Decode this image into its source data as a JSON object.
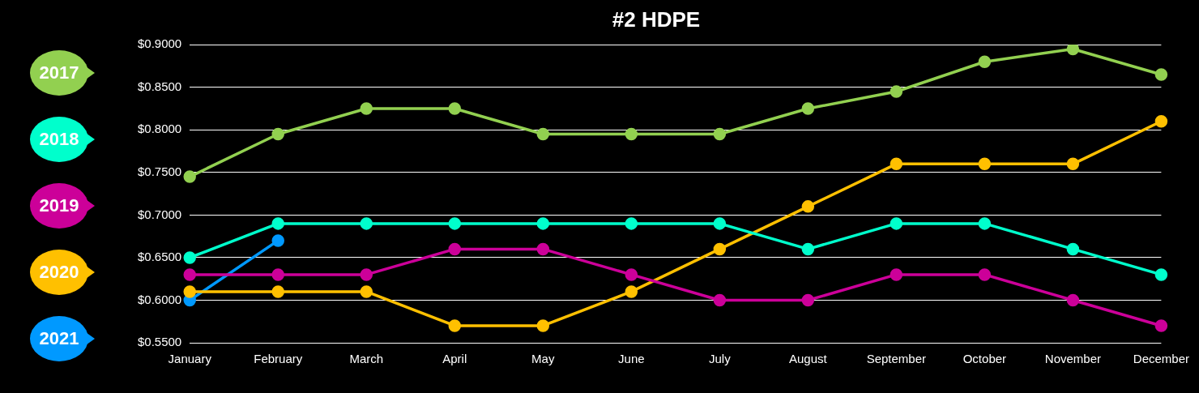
{
  "chart_data": {
    "type": "line",
    "title": "#2 HDPE",
    "categories": [
      "January",
      "February",
      "March",
      "April",
      "May",
      "June",
      "July",
      "August",
      "September",
      "October",
      "November",
      "December"
    ],
    "series": [
      {
        "name": "2017",
        "color": "#92d050",
        "values": [
          0.745,
          0.795,
          0.825,
          0.825,
          0.795,
          0.795,
          0.795,
          0.825,
          0.845,
          0.88,
          0.895,
          0.865
        ]
      },
      {
        "name": "2018",
        "color": "#00ffcc",
        "values": [
          0.65,
          0.69,
          0.69,
          0.69,
          0.69,
          0.69,
          0.69,
          0.66,
          0.69,
          0.69,
          0.66,
          0.63
        ]
      },
      {
        "name": "2019",
        "color": "#cc0099",
        "values": [
          0.63,
          0.63,
          0.63,
          0.66,
          0.66,
          0.63,
          0.6,
          0.6,
          0.63,
          0.63,
          0.6,
          0.57
        ]
      },
      {
        "name": "2020",
        "color": "#ffc000",
        "values": [
          0.61,
          0.61,
          0.61,
          0.57,
          0.57,
          0.61,
          0.66,
          0.71,
          0.76,
          0.76,
          0.76,
          0.81
        ]
      },
      {
        "name": "2021",
        "color": "#0099ff",
        "values": [
          0.6,
          0.67,
          null,
          null,
          null,
          null,
          null,
          null,
          null,
          null,
          null,
          null
        ]
      }
    ],
    "ylim": [
      0.55,
      0.9
    ],
    "yticks": [
      {
        "value": 0.55,
        "label": "$0.5500"
      },
      {
        "value": 0.6,
        "label": "$0.6000"
      },
      {
        "value": 0.65,
        "label": "$0.6500"
      },
      {
        "value": 0.7,
        "label": "$0.7000"
      },
      {
        "value": 0.75,
        "label": "$0.7500"
      },
      {
        "value": 0.8,
        "label": "$0.8000"
      },
      {
        "value": 0.85,
        "label": "$0.8500"
      },
      {
        "value": 0.9,
        "label": "$0.9000"
      }
    ],
    "grid": "y",
    "legend": "left",
    "marker": "circle",
    "line_style": "solid"
  }
}
